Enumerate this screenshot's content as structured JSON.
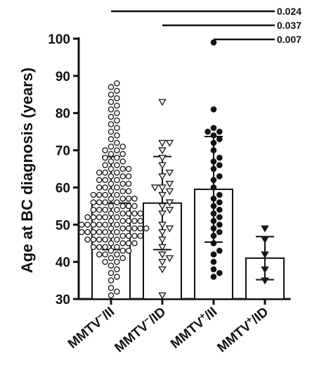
{
  "chart_data": {
    "type": "bar",
    "title": "",
    "xlabel": "",
    "ylabel": "Age at BC diagnosis (years)",
    "ylim": [
      30,
      100
    ],
    "yticks": [
      30,
      40,
      50,
      60,
      70,
      80,
      90,
      100
    ],
    "grid": false,
    "categories": [
      {
        "base": "MMTV",
        "sup": "−",
        "suffix": "/II",
        "marker": "circle-open"
      },
      {
        "base": "MMTV",
        "sup": "−",
        "suffix": "/ID",
        "marker": "triangle-down-open"
      },
      {
        "base": "MMTV",
        "sup": "+",
        "suffix": "/II",
        "marker": "circle-filled"
      },
      {
        "base": "MMTV",
        "sup": "+",
        "suffix": "/ID",
        "marker": "triangle-down-filled"
      }
    ],
    "means": [
      55.8,
      55.8,
      59.5,
      41.0
    ],
    "sd": [
      12.5,
      12.5,
      14.2,
      5.8
    ],
    "points": [
      [
        31,
        32,
        33,
        35,
        36,
        37,
        38,
        39,
        40,
        40,
        41,
        41,
        42,
        42,
        42,
        43,
        43,
        43,
        44,
        44,
        44,
        44,
        45,
        45,
        45,
        45,
        46,
        46,
        46,
        46,
        46,
        47,
        47,
        47,
        47,
        47,
        48,
        48,
        48,
        48,
        48,
        48,
        49,
        49,
        49,
        49,
        49,
        49,
        50,
        50,
        50,
        50,
        50,
        50,
        51,
        51,
        51,
        51,
        51,
        52,
        52,
        52,
        52,
        52,
        53,
        53,
        53,
        53,
        53,
        54,
        54,
        54,
        54,
        55,
        55,
        55,
        55,
        56,
        56,
        56,
        56,
        57,
        57,
        57,
        57,
        58,
        58,
        58,
        58,
        59,
        59,
        59,
        60,
        60,
        60,
        61,
        61,
        61,
        62,
        62,
        62,
        63,
        63,
        63,
        64,
        64,
        64,
        65,
        65,
        65,
        66,
        66,
        67,
        67,
        68,
        68,
        69,
        69,
        70,
        70,
        71,
        71,
        72,
        73,
        74,
        75,
        76,
        77,
        78,
        79,
        80,
        81,
        82,
        83,
        84,
        85,
        86,
        87,
        88
      ],
      [
        31,
        38,
        40,
        41,
        42,
        44,
        46,
        48,
        49,
        50,
        53,
        54,
        55,
        56,
        58,
        59,
        60,
        60,
        61,
        63,
        64,
        66,
        68,
        70,
        72,
        72,
        83
      ],
      [
        36,
        37,
        38,
        40,
        42,
        43,
        45,
        47,
        48,
        49,
        50,
        51,
        52,
        53,
        54,
        55,
        56,
        57,
        58,
        60,
        62,
        63,
        65,
        66,
        67,
        68,
        70,
        72,
        73,
        74,
        75,
        75,
        76,
        81,
        99
      ],
      [
        35,
        38,
        42,
        46,
        49
      ]
    ],
    "comparisons": [
      {
        "from": 0,
        "to": 3,
        "p": "0.024"
      },
      {
        "from": 1,
        "to": 3,
        "p": "0.037"
      },
      {
        "from": 2,
        "to": 3,
        "p": "0.007"
      }
    ]
  }
}
